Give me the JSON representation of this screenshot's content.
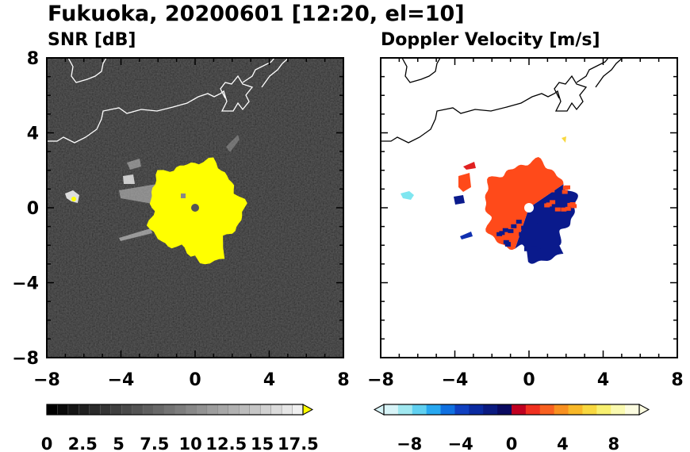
{
  "figure_title": "Fukuoka, 20200601 [12:20, el=10]",
  "chart_data": [
    {
      "type": "heatmap",
      "title": "SNR [dB]",
      "xlim": [
        -8,
        8
      ],
      "ylim": [
        -8,
        8
      ],
      "xticks": [
        -8,
        -4,
        0,
        4,
        8
      ],
      "yticks": [
        -8,
        -4,
        0,
        4,
        8
      ],
      "x_tick_labels": [
        "−8",
        "−4",
        "0",
        "4",
        "8"
      ],
      "y_tick_labels": [
        "8",
        "4",
        "0",
        "−4",
        "−8"
      ],
      "background_color": "#1c1c1c",
      "echo_color": "#ffff00",
      "echo_center": [
        0,
        0
      ],
      "echo_radius": 2.5,
      "colorbar": {
        "min": 0,
        "max": 18.5,
        "tick_values": [
          0,
          2.5,
          5,
          7.5,
          10,
          12.5,
          15,
          17.5
        ],
        "tick_labels": [
          "0",
          "2.5",
          "5",
          "7.5",
          "10",
          "12.5",
          "15",
          "17.5"
        ],
        "start_color": "#000000",
        "end_color": "#f0f0f0",
        "extend_color": "#ffff00"
      }
    },
    {
      "type": "heatmap",
      "title": "Doppler Velocity [m/s]",
      "xlim": [
        -8,
        8
      ],
      "ylim": [
        -8,
        8
      ],
      "xticks": [
        -8,
        -4,
        0,
        4,
        8
      ],
      "yticks": [
        -8,
        -4,
        0,
        4,
        8
      ],
      "x_tick_labels": [
        "−8",
        "−4",
        "0",
        "4",
        "8"
      ],
      "y_tick_labels": [
        "8",
        "4",
        "0",
        "−4",
        "−8"
      ],
      "approaching_color": "#0a1a8c",
      "receding_color": "#ff4a1a",
      "echo_center": [
        0,
        0
      ],
      "echo_radius": 2.4,
      "colorbar": {
        "min": -10,
        "max": 10,
        "tick_values": [
          -8,
          -4,
          0,
          4,
          8
        ],
        "tick_labels": [
          "−8",
          "−4",
          "0",
          "4",
          "8"
        ],
        "colors": [
          "#d8f4f8",
          "#a0e8f0",
          "#60d0f0",
          "#28a8f0",
          "#1070e0",
          "#1040c0",
          "#0a2aa0",
          "#0a1a80",
          "#0a0a60",
          "#c00020",
          "#f03020",
          "#f86020",
          "#f89020",
          "#f8b828",
          "#f8d840",
          "#f8f070",
          "#fafab0",
          "#fcfce0"
        ]
      }
    }
  ]
}
